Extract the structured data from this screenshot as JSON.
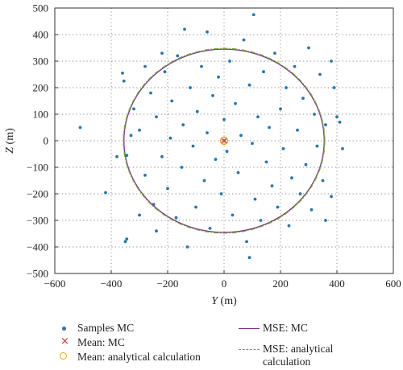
{
  "chart_data": {
    "type": "scatter",
    "xlabel_var": "Y",
    "xlabel_unit": " (m)",
    "ylabel_var": "Z",
    "ylabel_unit": " (m)",
    "xlim": [
      -600,
      600
    ],
    "ylim": [
      -500,
      500
    ],
    "xticks": [
      -600,
      -400,
      -200,
      0,
      200,
      400,
      600
    ],
    "yticks": [
      -500,
      -400,
      -300,
      -200,
      -100,
      0,
      100,
      200,
      300,
      400,
      500
    ],
    "xtick_labels": [
      "−600",
      "−400",
      "−200",
      "0",
      "200",
      "400",
      "600"
    ],
    "ytick_labels": [
      "500",
      "400",
      "300",
      "200",
      "100",
      "0",
      "−100",
      "−200",
      "−300",
      "−400",
      "−500"
    ],
    "grid": "dotted",
    "legend_position": "bottom",
    "colors": {
      "samples": "#1f77b4",
      "mean_mc": "#d62728",
      "mean_analytical": "#e8a317",
      "mse_mc": "#7b2d8b",
      "mse_analytical": "#77ac30"
    },
    "series": [
      {
        "name": "Samples MC",
        "kind": "points",
        "points": [
          [
            -510,
            50
          ],
          [
            -420,
            -195
          ],
          [
            -360,
            255
          ],
          [
            -355,
            225
          ],
          [
            -345,
            -370
          ],
          [
            -350,
            -380
          ],
          [
            -345,
            -55
          ],
          [
            -330,
            20
          ],
          [
            -320,
            120
          ],
          [
            -300,
            40
          ],
          [
            -280,
            -130
          ],
          [
            -260,
            180
          ],
          [
            -250,
            -240
          ],
          [
            -240,
            90
          ],
          [
            -220,
            -60
          ],
          [
            -210,
            260
          ],
          [
            -200,
            -180
          ],
          [
            -190,
            10
          ],
          [
            -185,
            150
          ],
          [
            -170,
            -290
          ],
          [
            -165,
            320
          ],
          [
            -150,
            -100
          ],
          [
            -145,
            60
          ],
          [
            -140,
            420
          ],
          [
            -130,
            -400
          ],
          [
            -120,
            200
          ],
          [
            -110,
            -20
          ],
          [
            -100,
            -250
          ],
          [
            -95,
            110
          ],
          [
            -80,
            280
          ],
          [
            -70,
            -150
          ],
          [
            -60,
            30
          ],
          [
            -50,
            -330
          ],
          [
            -40,
            170
          ],
          [
            -30,
            -70
          ],
          [
            -20,
            240
          ],
          [
            -10,
            -200
          ],
          [
            0,
            80
          ],
          [
            10,
            -40
          ],
          [
            20,
            300
          ],
          [
            30,
            -280
          ],
          [
            40,
            140
          ],
          [
            50,
            -120
          ],
          [
            60,
            20
          ],
          [
            70,
            380
          ],
          [
            80,
            -380
          ],
          [
            90,
            210
          ],
          [
            100,
            -10
          ],
          [
            105,
            475
          ],
          [
            110,
            -220
          ],
          [
            120,
            90
          ],
          [
            130,
            -300
          ],
          [
            140,
            260
          ],
          [
            150,
            -80
          ],
          [
            160,
            50
          ],
          [
            170,
            -170
          ],
          [
            180,
            330
          ],
          [
            190,
            -250
          ],
          [
            200,
            120
          ],
          [
            210,
            -30
          ],
          [
            220,
            200
          ],
          [
            230,
            -320
          ],
          [
            240,
            -140
          ],
          [
            250,
            280
          ],
          [
            260,
            40
          ],
          [
            270,
            -200
          ],
          [
            280,
            160
          ],
          [
            290,
            -90
          ],
          [
            300,
            350
          ],
          [
            310,
            -260
          ],
          [
            320,
            100
          ],
          [
            330,
            -20
          ],
          [
            340,
            250
          ],
          [
            350,
            -150
          ],
          [
            360,
            60
          ],
          [
            380,
            -210
          ],
          [
            390,
            200
          ],
          [
            400,
            90
          ],
          [
            410,
            70
          ],
          [
            380,
            300
          ],
          [
            360,
            -300
          ],
          [
            -300,
            -280
          ],
          [
            -280,
            280
          ],
          [
            -240,
            -340
          ],
          [
            -220,
            330
          ],
          [
            90,
            -440
          ],
          [
            -60,
            410
          ],
          [
            -380,
            -60
          ],
          [
            420,
            -30
          ]
        ]
      },
      {
        "name": "Mean: MC",
        "kind": "cross",
        "x": 0,
        "y": 0
      },
      {
        "name": "Mean: analytical calculation",
        "kind": "circle-marker",
        "x": 0,
        "y": 0
      },
      {
        "name": "MSE: MC",
        "kind": "ellipse",
        "cx": 0,
        "cy": 0,
        "rx": 355,
        "ry": 345
      },
      {
        "name": "MSE: analytical calculation",
        "kind": "ellipse",
        "cx": 0,
        "cy": 0,
        "rx": 357,
        "ry": 348
      }
    ]
  },
  "legend": {
    "samples": "Samples MC",
    "mean_mc": "Mean: MC",
    "mean_analytical": "Mean: analytical calculation",
    "mse_mc": "MSE: MC",
    "mse_analytical_line1": "MSE: analytical",
    "mse_analytical_line2": "calculation"
  }
}
